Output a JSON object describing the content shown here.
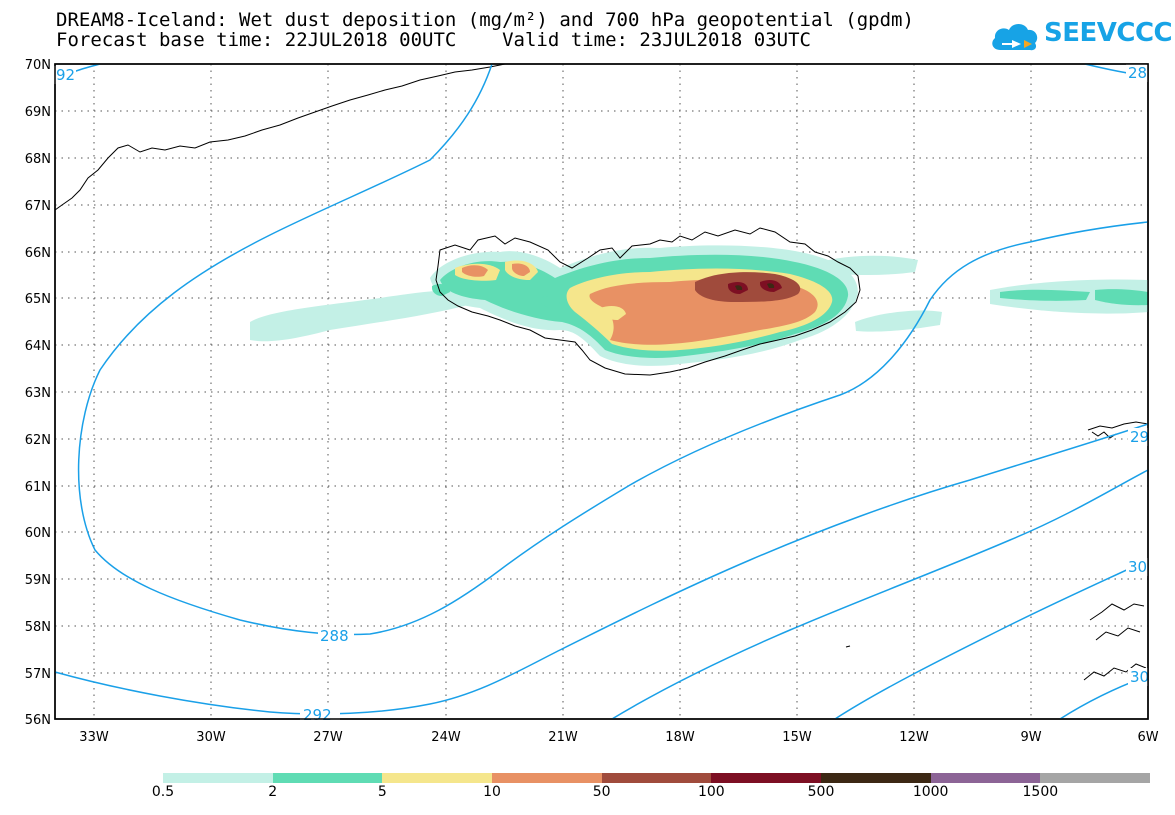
{
  "title": {
    "line1": "DREAM8-Iceland: Wet dust deposition (mg/m²) and 700 hPa geopotential (gpdm)",
    "line2": "Forecast base time: 22JUL2018 00UTC    Valid time: 23JUL2018 03UTC"
  },
  "logo": {
    "text": "SEEVCCC",
    "icon": "cloud-icon",
    "color": "#17a3e6"
  },
  "map": {
    "lat_labels": [
      "70N",
      "69N",
      "68N",
      "67N",
      "66N",
      "65N",
      "64N",
      "63N",
      "62N",
      "61N",
      "60N",
      "59N",
      "58N",
      "57N",
      "56N"
    ],
    "lon_labels": [
      "33W",
      "30W",
      "27W",
      "24W",
      "21W",
      "18W",
      "15W",
      "12W",
      "9W",
      "6W"
    ],
    "contour_labels": [
      "92",
      "28",
      "288",
      "292",
      "29",
      "30",
      "30"
    ],
    "contour_color": "#1aa0e8",
    "coast_color": "#000000"
  },
  "legend": {
    "labels": [
      "0.5",
      "2",
      "5",
      "10",
      "50",
      "100",
      "500",
      "1000",
      "1500"
    ],
    "colors": [
      "#c3f0e6",
      "#5fdcb4",
      "#f5e68c",
      "#e89164",
      "#a04b3c",
      "#7d0f23",
      "#3c2814",
      "#8c6496",
      "#a5a5a5"
    ]
  }
}
